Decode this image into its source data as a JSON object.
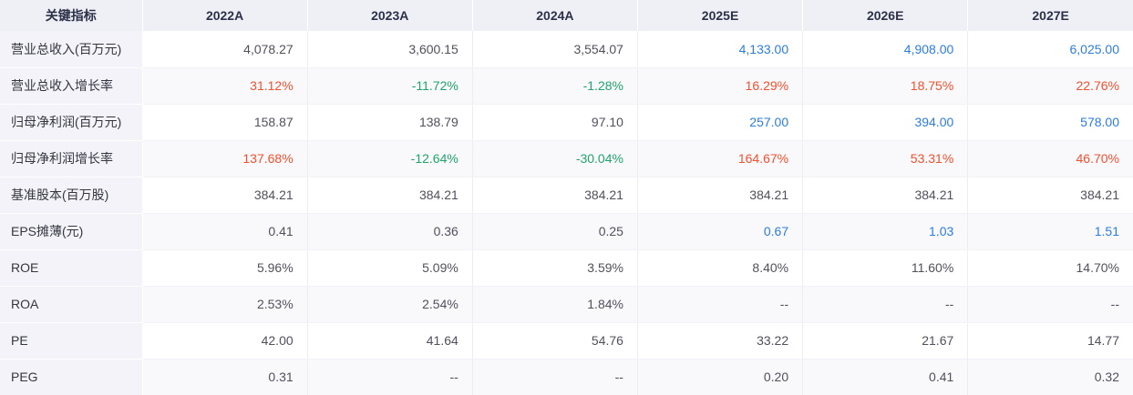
{
  "colors": {
    "header_bg": "#eef0f6",
    "header_text": "#2c3048",
    "label_bg": "#f3f3f9",
    "label_text": "#35363f",
    "row_bg": "#ffffff",
    "row_alt_bg": "#f9f9fc",
    "default": "#50515c",
    "blue": "#2b7de0",
    "red": "#f4502c",
    "green": "#1fa569"
  },
  "table": {
    "columns": [
      "关键指标",
      "2022A",
      "2023A",
      "2024A",
      "2025E",
      "2026E",
      "2027E"
    ],
    "rows": [
      {
        "label": "营业总收入(百万元)",
        "values": [
          {
            "text": "4,078.27",
            "color": "default"
          },
          {
            "text": "3,600.15",
            "color": "default"
          },
          {
            "text": "3,554.07",
            "color": "default"
          },
          {
            "text": "4,133.00",
            "color": "blue"
          },
          {
            "text": "4,908.00",
            "color": "blue"
          },
          {
            "text": "6,025.00",
            "color": "blue"
          }
        ]
      },
      {
        "label": "营业总收入增长率",
        "values": [
          {
            "text": "31.12%",
            "color": "red"
          },
          {
            "text": "-11.72%",
            "color": "green"
          },
          {
            "text": "-1.28%",
            "color": "green"
          },
          {
            "text": "16.29%",
            "color": "red"
          },
          {
            "text": "18.75%",
            "color": "red"
          },
          {
            "text": "22.76%",
            "color": "red"
          }
        ]
      },
      {
        "label": "归母净利润(百万元)",
        "values": [
          {
            "text": "158.87",
            "color": "default"
          },
          {
            "text": "138.79",
            "color": "default"
          },
          {
            "text": "97.10",
            "color": "default"
          },
          {
            "text": "257.00",
            "color": "blue"
          },
          {
            "text": "394.00",
            "color": "blue"
          },
          {
            "text": "578.00",
            "color": "blue"
          }
        ]
      },
      {
        "label": "归母净利润增长率",
        "values": [
          {
            "text": "137.68%",
            "color": "red"
          },
          {
            "text": "-12.64%",
            "color": "green"
          },
          {
            "text": "-30.04%",
            "color": "green"
          },
          {
            "text": "164.67%",
            "color": "red"
          },
          {
            "text": "53.31%",
            "color": "red"
          },
          {
            "text": "46.70%",
            "color": "red"
          }
        ]
      },
      {
        "label": "基准股本(百万股)",
        "values": [
          {
            "text": "384.21",
            "color": "default"
          },
          {
            "text": "384.21",
            "color": "default"
          },
          {
            "text": "384.21",
            "color": "default"
          },
          {
            "text": "384.21",
            "color": "default"
          },
          {
            "text": "384.21",
            "color": "default"
          },
          {
            "text": "384.21",
            "color": "default"
          }
        ]
      },
      {
        "label": "EPS摊薄(元)",
        "values": [
          {
            "text": "0.41",
            "color": "default"
          },
          {
            "text": "0.36",
            "color": "default"
          },
          {
            "text": "0.25",
            "color": "default"
          },
          {
            "text": "0.67",
            "color": "blue"
          },
          {
            "text": "1.03",
            "color": "blue"
          },
          {
            "text": "1.51",
            "color": "blue"
          }
        ]
      },
      {
        "label": "ROE",
        "values": [
          {
            "text": "5.96%",
            "color": "default"
          },
          {
            "text": "5.09%",
            "color": "default"
          },
          {
            "text": "3.59%",
            "color": "default"
          },
          {
            "text": "8.40%",
            "color": "default"
          },
          {
            "text": "11.60%",
            "color": "default"
          },
          {
            "text": "14.70%",
            "color": "default"
          }
        ]
      },
      {
        "label": "ROA",
        "values": [
          {
            "text": "2.53%",
            "color": "default"
          },
          {
            "text": "2.54%",
            "color": "default"
          },
          {
            "text": "1.84%",
            "color": "default"
          },
          {
            "text": "--",
            "color": "default"
          },
          {
            "text": "--",
            "color": "default"
          },
          {
            "text": "--",
            "color": "default"
          }
        ]
      },
      {
        "label": "PE",
        "values": [
          {
            "text": "42.00",
            "color": "default"
          },
          {
            "text": "41.64",
            "color": "default"
          },
          {
            "text": "54.76",
            "color": "default"
          },
          {
            "text": "33.22",
            "color": "default"
          },
          {
            "text": "21.67",
            "color": "default"
          },
          {
            "text": "14.77",
            "color": "default"
          }
        ]
      },
      {
        "label": "PEG",
        "values": [
          {
            "text": "0.31",
            "color": "default"
          },
          {
            "text": "--",
            "color": "default"
          },
          {
            "text": "--",
            "color": "default"
          },
          {
            "text": "0.20",
            "color": "default"
          },
          {
            "text": "0.41",
            "color": "default"
          },
          {
            "text": "0.32",
            "color": "default"
          }
        ]
      }
    ]
  }
}
